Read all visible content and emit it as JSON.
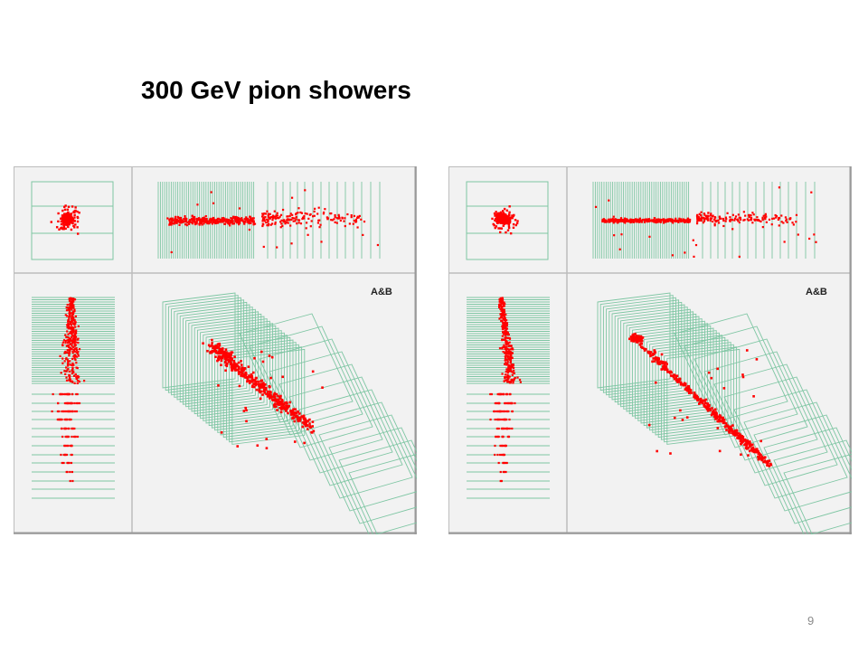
{
  "slide": {
    "title": "300 GeV pion showers",
    "page_number": "9"
  },
  "colors": {
    "detector_lines": "#7ec6a3",
    "hits": "#ff0000",
    "panel_background": "#f2f2f2",
    "panel_border": "#bdbdbd"
  },
  "displays": [
    {
      "id": "event-left",
      "label": "A&B",
      "variant": "diffuse"
    },
    {
      "id": "event-right",
      "label": "A&B",
      "variant": "track"
    }
  ]
}
